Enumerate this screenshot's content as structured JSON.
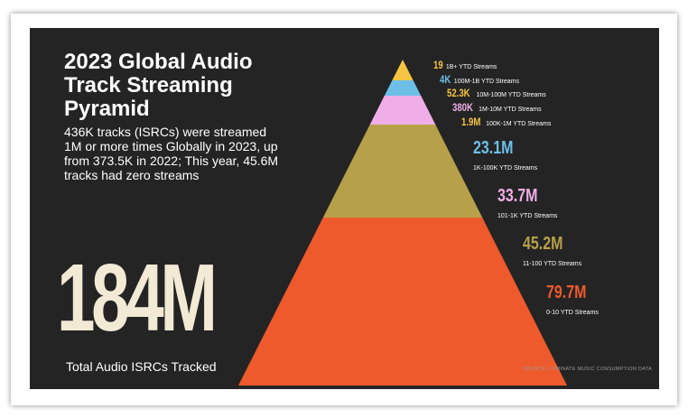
{
  "title": "2023 Global Audio Track Streaming Pyramid",
  "subtitle": "436K tracks (ISRCs) were streamed 1M or more times Globally in 2023, up from 373.5K in 2022; This year, 45.6M tracks had zero streams",
  "total": {
    "value": "184M",
    "caption": "Total Audio ISRCs Tracked"
  },
  "source": "SOURCE: LUMINATE MUSIC CONSUMPTION DATA",
  "chart_data": {
    "type": "pyramid",
    "title": "2023 Global Audio Track Streaming Pyramid",
    "tiers": [
      {
        "value_label": "19",
        "value": 19,
        "description": "1B+ YTD Streams",
        "color": "#f5c542"
      },
      {
        "value_label": "4K",
        "value": 4000,
        "description": "100M-1B YTD Streams",
        "color": "#6dbfe8"
      },
      {
        "value_label": "52.3K",
        "value": 52300,
        "description": "10M-100M YTD Streams",
        "color": "#f5c542"
      },
      {
        "value_label": "380K",
        "value": 380000,
        "description": "1M-10M YTD Streams",
        "color": "#f0aee8"
      },
      {
        "value_label": "1.9M",
        "value": 1900000,
        "description": "100K-1M YTD Streams",
        "color": "#f5c542"
      },
      {
        "value_label": "23.1M",
        "value": 23100000,
        "description": "1K-100K YTD Streams",
        "color": "#6dbfe8"
      },
      {
        "value_label": "33.7M",
        "value": 33700000,
        "description": "101-1K YTD Streams",
        "color": "#f0aee8"
      },
      {
        "value_label": "45.2M",
        "value": 45200000,
        "description": "11-100 YTD Streams",
        "color": "#b7a04a"
      },
      {
        "value_label": "79.7M",
        "value": 79700000,
        "description": "0-10 YTD Streams",
        "color": "#ee5a2c"
      }
    ],
    "bands": [
      {
        "color": "#f5c542",
        "tiers": [
          "19",
          "4K"
        ]
      },
      {
        "color": "#6dbfe8",
        "tiers": [
          "52.3K"
        ]
      },
      {
        "color": "#f0aee8",
        "tiers": [
          "380K",
          "1.9M"
        ]
      },
      {
        "color": "#b7a04a",
        "tiers": [
          "23.1M",
          "33.7M"
        ]
      },
      {
        "color": "#ee5a2c",
        "tiers": [
          "45.2M",
          "79.7M"
        ]
      }
    ]
  }
}
